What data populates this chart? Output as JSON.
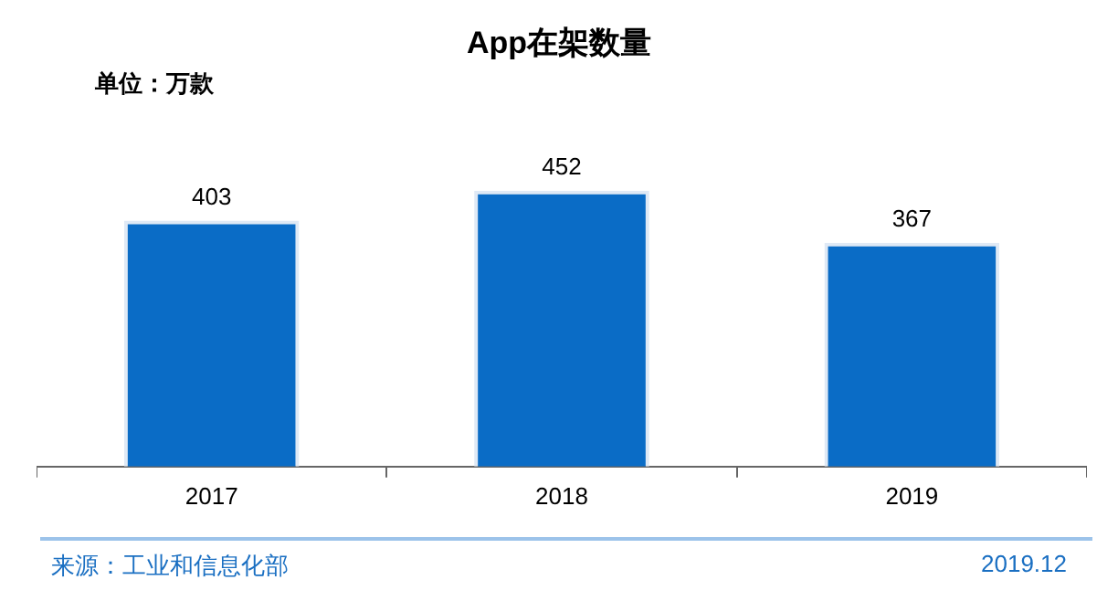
{
  "chart_data": {
    "type": "bar",
    "title": "App在架数量",
    "categories": [
      "2017",
      "2018",
      "2019"
    ],
    "values": [
      403,
      452,
      367
    ],
    "color": "#0a6cc6",
    "data_labels": true,
    "grid": false,
    "legend": false,
    "annotations": [
      "单位：万款",
      "来源：工业和信息化部",
      "2019.12"
    ]
  }
}
